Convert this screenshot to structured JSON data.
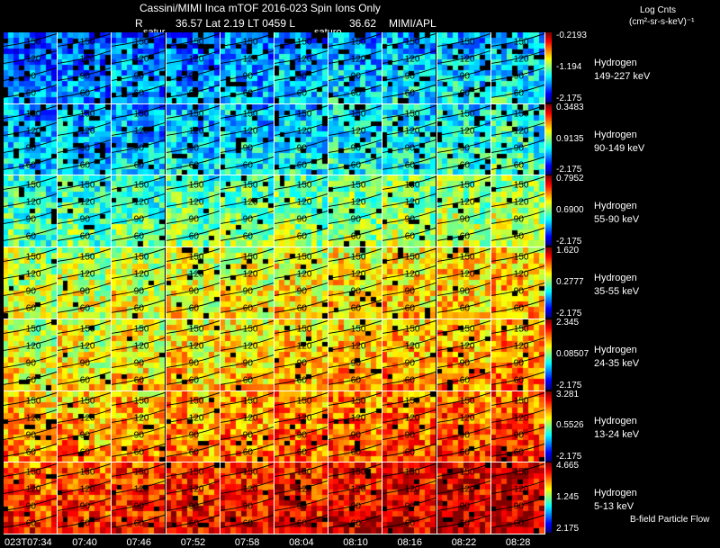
{
  "header": {
    "title": "Cassini/MIMI Inca mTOF  2016-023    Spin    Ions Only",
    "line2_r": "R",
    "line2_vals": "36.57 Lat 2.19 LT 0459 L",
    "line2_l": "36.62",
    "line2_org": "MIMI/APL",
    "units_line1": "Log Cnts",
    "units_line2": "(cm²-sr-s-keV)⁻¹",
    "satur_1": "satur",
    "satur_2": "saturo"
  },
  "footer": {
    "flow_label": "B-field Particle Flow"
  },
  "chart_data": {
    "type": "heatmap",
    "time_labels": [
      "023T07:34",
      "07:40",
      "07:46",
      "07:52",
      "07:58",
      "08:04",
      "08:10",
      "08:16",
      "08:22",
      "08:28"
    ],
    "contour_labels": [
      "150",
      "120",
      "90",
      "60"
    ],
    "rows": [
      {
        "species": "Hydrogen",
        "energy": "149-227 keV",
        "cbar_max": "-0.2193",
        "cbar_mid": "-1.194",
        "cbar_min": "-2.175",
        "mean_level": 0.22
      },
      {
        "species": "Hydrogen",
        "energy": "90-149 keV",
        "cbar_max": "0.3483",
        "cbar_mid": "0.9135",
        "cbar_min": "-2.175",
        "mean_level": 0.28
      },
      {
        "species": "Hydrogen",
        "energy": "55-90 keV",
        "cbar_max": "0.7952",
        "cbar_mid": "0.6900",
        "cbar_min": "-2.175",
        "mean_level": 0.42
      },
      {
        "species": "Hydrogen",
        "energy": "35-55 keV",
        "cbar_max": "1.620",
        "cbar_mid": "0.2777",
        "cbar_min": "-2.175",
        "mean_level": 0.55
      },
      {
        "species": "Hydrogen",
        "energy": "24-35 keV",
        "cbar_max": "2.345",
        "cbar_mid": "0.08507",
        "cbar_min": "-2.175",
        "mean_level": 0.6
      },
      {
        "species": "Hydrogen",
        "energy": "13-24 keV",
        "cbar_max": "3.281",
        "cbar_mid": "0.5526",
        "cbar_min": "-2.175",
        "mean_level": 0.68
      },
      {
        "species": "Hydrogen",
        "energy": "5-13 keV",
        "cbar_max": "4.665",
        "cbar_mid": "1.245",
        "cbar_min": "2.175",
        "mean_level": 0.8
      }
    ]
  }
}
